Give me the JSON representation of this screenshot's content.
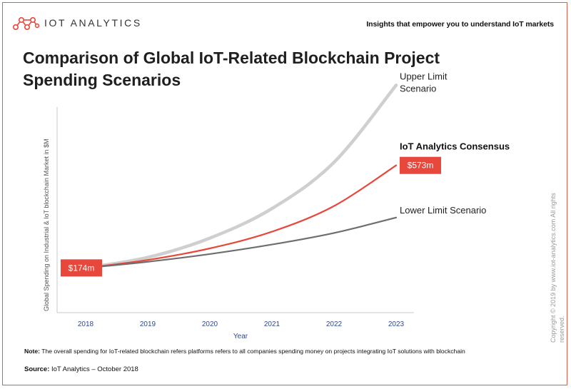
{
  "header": {
    "brand": "IOT ANALYTICS",
    "logo_icon": "molecule-network-icon",
    "tagline": "Insights that empower you to understand IoT markets",
    "title": "Comparison of Global IoT-Related Blockchain Project Spending Scenarios"
  },
  "colors": {
    "accent": "#e8473b",
    "upper": "#cfcfcf",
    "lower": "#6e6e6e",
    "axis_tick": "#2f4a8a"
  },
  "chart_data": {
    "type": "line",
    "x": [
      "2018",
      "2019",
      "2020",
      "2021",
      "2022",
      "2023"
    ],
    "xlabel": "Year",
    "ylabel": "Global Spending on Industrial & IoT blockchain Market in $M",
    "ylim": [
      0,
      800
    ],
    "grid": false,
    "series": [
      {
        "name": "Upper Limit Scenario",
        "values": [
          174,
          215,
          290,
          405,
          585,
          885
        ]
      },
      {
        "name": "IoT Analytics Consensus",
        "values": [
          174,
          205,
          250,
          315,
          415,
          573
        ]
      },
      {
        "name": "Lower Limit Scenario",
        "values": [
          174,
          198,
          228,
          265,
          310,
          370
        ]
      }
    ],
    "data_labels": [
      {
        "series": "IoT Analytics Consensus",
        "x": "2018",
        "text": "$174m"
      },
      {
        "series": "IoT Analytics Consensus",
        "x": "2023",
        "text": "$573m"
      }
    ],
    "annotations": {
      "upper": [
        "Upper Limit",
        "Scenario"
      ],
      "consensus": "IoT Analytics Consensus",
      "lower": "Lower Limit Scenario"
    }
  },
  "footer": {
    "note_label": "Note:",
    "note_text": " The overall spending for IoT-related blockchain refers platforms refers to all companies spending money on projects integrating IoT solutions with blockchain",
    "source_label": "Source:",
    "source_text": " IoT Analytics – October 2018",
    "copyright_line1": "Copyright © 2019 by www.iot-analytics.com All rights",
    "copyright_line2": "reserved."
  }
}
